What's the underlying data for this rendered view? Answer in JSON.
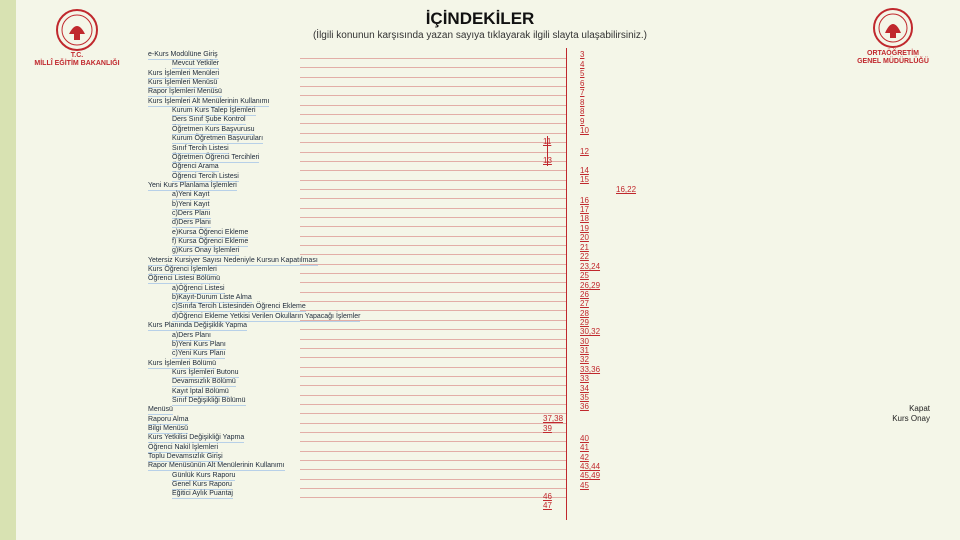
{
  "header": {
    "title": "İÇİNDEKİLER",
    "subtitle": "(İlgili konunun karşısında yazan sayıya tıklayarak ilgili slayta ulaşabilirsiniz.)"
  },
  "logos": {
    "left": {
      "line1": "T.C.",
      "line2": "MİLLÎ EĞİTİM BAKANLIĞI"
    },
    "right": {
      "line1": "ORTAÖĞRETİM",
      "line2": "GENEL MÜDÜRLÜĞÜ"
    }
  },
  "entries": [
    "e-Kurs Modülüne Giriş",
    "Mevcut Yetkiler",
    "Kurs İşlemleri Menüleri",
    "Kurs İşlemleri Menüsü",
    "Rapor İşlemleri Menüsü",
    "Kurs İşlemleri Alt Menülerinin Kullanımı",
    "Kurum Kurs Talep İşlemleri",
    "Ders Sınıf Şube Kontrol",
    "Öğretmen Kurs Başvurusu",
    "Kurum Öğretmen Başvuruları",
    "Sınıf Tercih Listesi",
    "Öğretmen Öğrenci Tercihleri",
    "Öğrenci Arama",
    "Öğrenci Tercih Listesi",
    "Yeni Kurs Planlama İşlemleri",
    "a)Yeni Kayıt",
    "b)Yeni Kayıt",
    "c)Ders Planı",
    "d)Ders Planı",
    "e)Kursa Öğrenci Ekleme",
    "f) Kursa Öğrenci Ekleme",
    "g)Kurs Onay İşlemleri",
    "Yetersiz Kursiyer Sayısı Nedeniyle Kursun Kapatılması",
    "Kurs Öğrenci İşlemleri",
    "Öğrenci Listesi Bölümü",
    "a)Öğrenci Listesi",
    "b)Kayıt-Durum Liste Alma",
    "c)Sınıfa Tercih Listesinden Öğrenci Ekleme",
    "d)Öğrenci Ekleme Yetkisi Verilen Okulların Yapacağı İşlemler",
    "Kurs Planında Değişiklik Yapma",
    "a)Ders Planı",
    "b)Yeni Kurs Planı",
    "c)Yeni Kurs Planı",
    "Kurs İşlemleri Bölümü",
    "Kurs İşlemleri Butonu",
    "Devamsızlık Bölümü",
    "Kayıt İptal Bölümü",
    "Sınıf Değişikliği Bölümü",
    "Menüsü",
    "Raporu Alma",
    "Bilgi Menüsü",
    "Kurs Yetkilisi Değişikliği Yapma",
    "Öğrenci Nakil İşlemleri",
    "Toplu Devamsızlık Girişi",
    "Rapor Menüsünün Alt Menülerinin Kullanımı",
    "Günlük Kurs Raporu",
    "Genel Kurs Raporu",
    "Eğitici Aylık Puantaj"
  ],
  "page_links_right": [
    "3",
    "4",
    "5",
    "6",
    "7",
    "8",
    "8",
    "9",
    "10",
    "12",
    "14",
    "15",
    "16",
    "17",
    "18",
    "19",
    "20",
    "21",
    "22",
    "23,24",
    "25",
    "26,29",
    "26",
    "27",
    "28",
    "29",
    "30,32",
    "30",
    "31",
    "32",
    "33,36",
    "33",
    "34",
    "35",
    "36",
    "40",
    "41",
    "42",
    "43,44",
    "45,49",
    "45"
  ],
  "page_links_middle": [
    "11",
    "13",
    "37,38",
    "39",
    "46",
    "47"
  ],
  "extra_link": "16,22",
  "side_note": {
    "line1": "Kapat",
    "line2": "Kurs Onay"
  }
}
